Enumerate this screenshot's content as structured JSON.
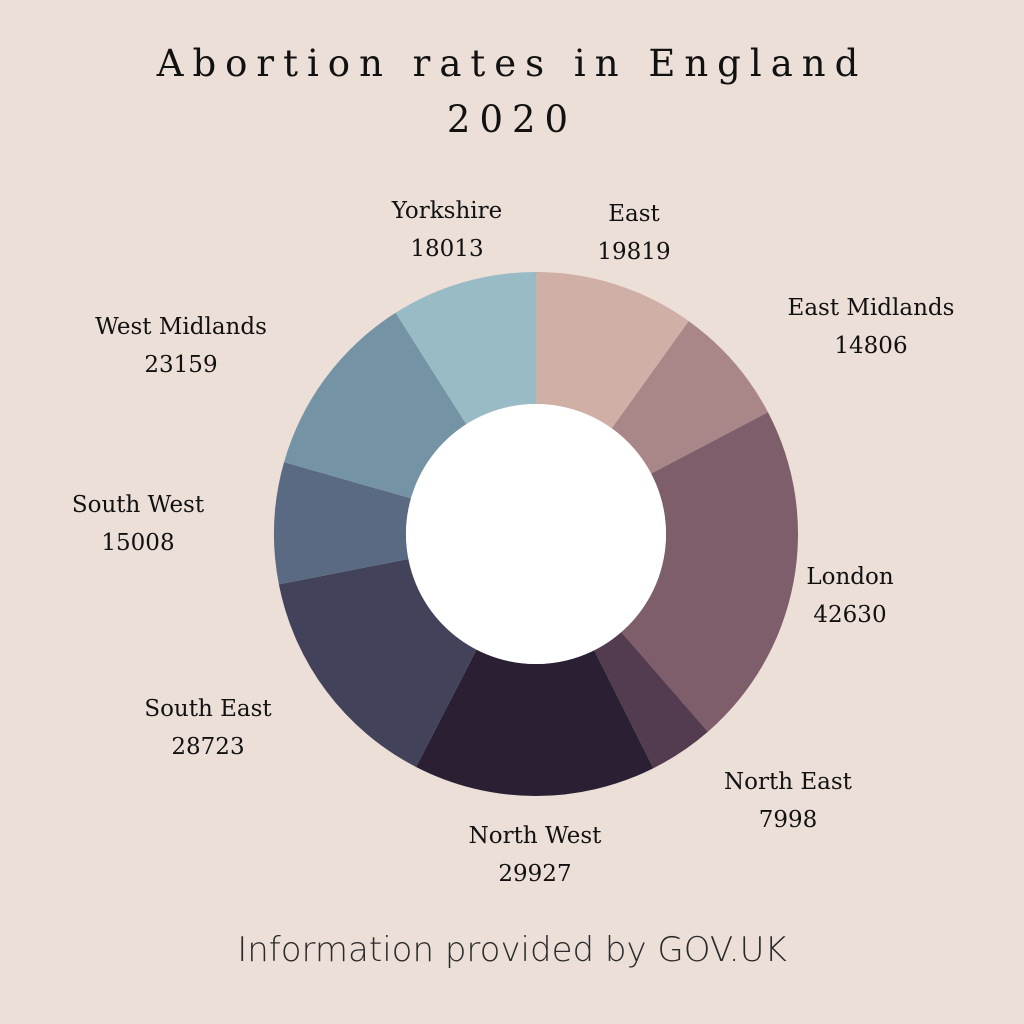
{
  "title_line1": "Abortion rates in England",
  "title_line2": "2020",
  "source": "Information provided by GOV.UK",
  "chart_data": {
    "type": "pie",
    "donut": true,
    "title": "Abortion rates in England 2020",
    "slices": [
      {
        "label": "East",
        "value": 19819,
        "color": "#cfafa6"
      },
      {
        "label": "East Midlands",
        "value": 14806,
        "color": "#a98789"
      },
      {
        "label": "London",
        "value": 42630,
        "color": "#7d5e6a"
      },
      {
        "label": "North East",
        "value": 7998,
        "color": "#533c50"
      },
      {
        "label": "North West",
        "value": 29927,
        "color": "#2b2033"
      },
      {
        "label": "South East",
        "value": 28723,
        "color": "#42425a"
      },
      {
        "label": "South West",
        "value": 15008,
        "color": "#5a6a82"
      },
      {
        "label": "West Midlands",
        "value": 23159,
        "color": "#7493a5"
      },
      {
        "label": "Yorkshire",
        "value": 18013,
        "color": "#98bbc6"
      }
    ],
    "center_color": "#ffffff"
  }
}
